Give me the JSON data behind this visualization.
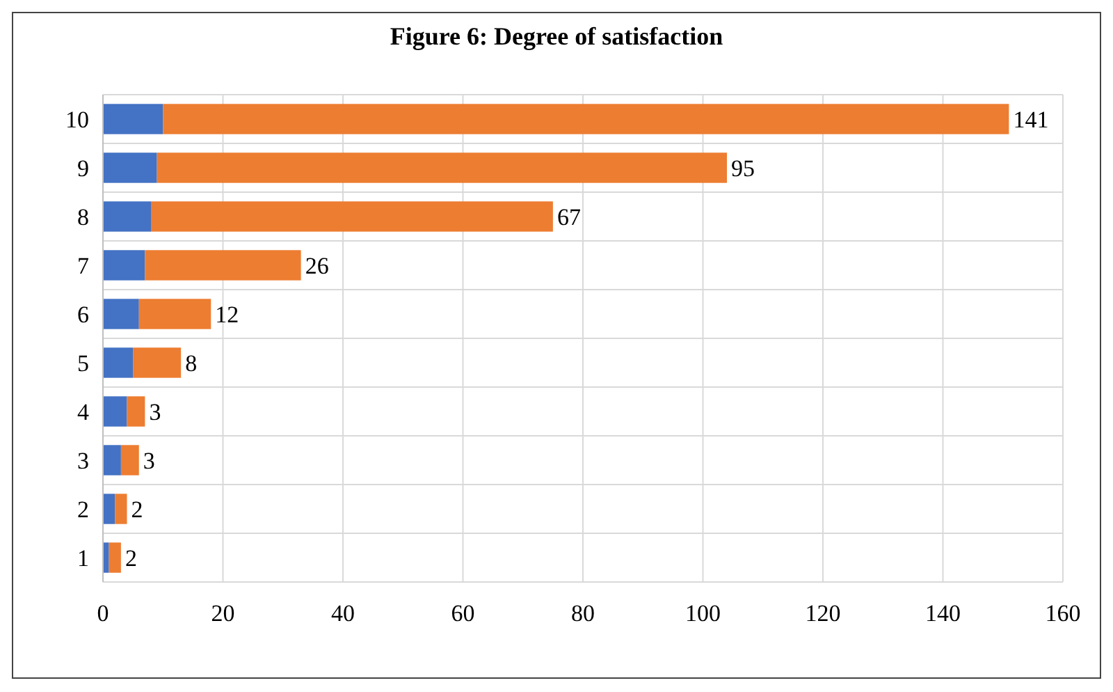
{
  "chart_data": {
    "type": "bar",
    "orientation": "horizontal",
    "stacked": true,
    "title": "Figure 6: Degree of satisfaction",
    "categories": [
      "10",
      "9",
      "8",
      "7",
      "6",
      "5",
      "4",
      "3",
      "2",
      "1"
    ],
    "series": [
      {
        "color": "#4472c4",
        "values": [
          10,
          9,
          8,
          7,
          6,
          5,
          4,
          3,
          2,
          1
        ]
      },
      {
        "color": "#ed7d31",
        "values": [
          141,
          95,
          67,
          26,
          12,
          8,
          3,
          3,
          2,
          2
        ],
        "value_labels": [
          "141",
          "95",
          "67",
          "26",
          "12",
          "8",
          "3",
          "3",
          "2",
          "2"
        ]
      }
    ],
    "xlim": [
      0,
      160
    ],
    "xticks": [
      0,
      20,
      40,
      60,
      80,
      100,
      120,
      140,
      160
    ],
    "grid": true
  }
}
